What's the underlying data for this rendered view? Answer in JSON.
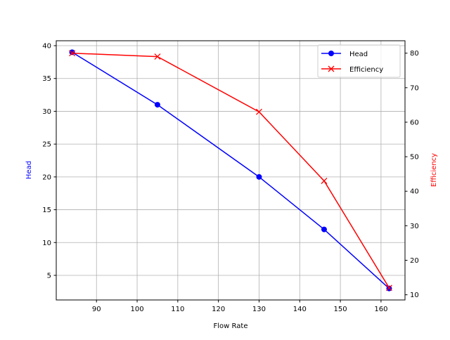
{
  "chart_data": {
    "type": "line",
    "title": "",
    "xlabel": "Flow Rate",
    "ylabel": "Head",
    "y2label": "Efficiency",
    "x": [
      84,
      105,
      130,
      146,
      162
    ],
    "xlim": [
      80.1,
      165.9
    ],
    "ylim": [
      1.25,
      40.75
    ],
    "y2lim": [
      8.5,
      83.6
    ],
    "xticks": [
      90,
      100,
      110,
      120,
      130,
      140,
      150,
      160
    ],
    "yticks": [
      5,
      10,
      15,
      20,
      25,
      30,
      35,
      40
    ],
    "y2ticks": [
      10,
      20,
      30,
      40,
      50,
      60,
      70,
      80
    ],
    "grid": true,
    "legend_position": "top-right",
    "series": [
      {
        "name": "Head",
        "axis": "left",
        "color": "#0000ff",
        "marker": "circle",
        "values": [
          39,
          31,
          20,
          12,
          3
        ]
      },
      {
        "name": "Efficiency",
        "axis": "right",
        "color": "#ff0000",
        "marker": "x",
        "values": [
          80,
          79,
          63,
          43,
          12
        ]
      }
    ]
  }
}
